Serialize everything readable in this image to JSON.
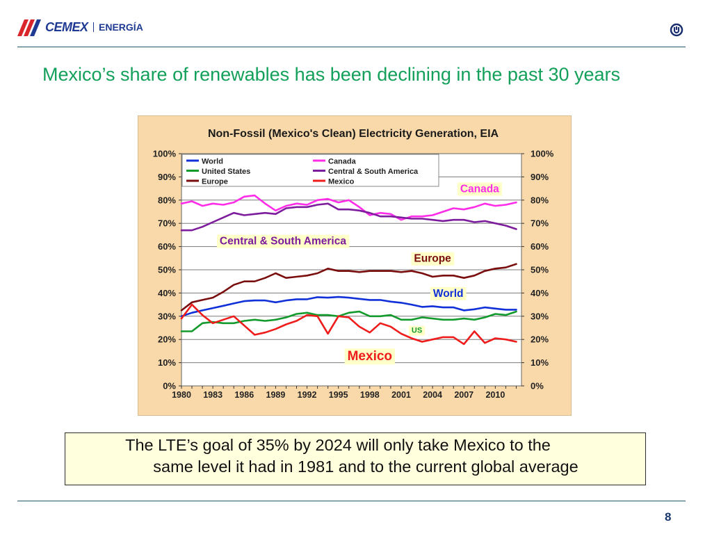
{
  "header": {
    "brand": "CEMEX",
    "division": "ENERGÍA"
  },
  "slide": {
    "title": "Mexico’s share of renewables has been declining in the past 30 years",
    "note_line1": "The LTE’s goal of 35% by 2024 will only take Mexico to the",
    "note_line2": "same level it had in 1981 and to the current global average",
    "page_number": "8"
  },
  "colors": {
    "brand_blue": "#1f3a93",
    "title_green": "#13a05a",
    "chart_bg": "#f9d9a9",
    "plot_bg": "#ffffff",
    "label_bg": "#ffffc8"
  },
  "chart_data": {
    "type": "line",
    "title": "Non-Fossil (Mexico's Clean) Electricity Generation, EIA",
    "x": [
      1980,
      1981,
      1982,
      1983,
      1984,
      1985,
      1986,
      1987,
      1988,
      1989,
      1990,
      1991,
      1992,
      1993,
      1994,
      1995,
      1996,
      1997,
      1998,
      1999,
      2000,
      2001,
      2002,
      2003,
      2004,
      2005,
      2006,
      2007,
      2008,
      2009,
      2010,
      2011,
      2012
    ],
    "xticks": [
      "1980",
      "1983",
      "1986",
      "1989",
      "1992",
      "1995",
      "1998",
      "2001",
      "2004",
      "2007",
      "2010"
    ],
    "yticks": [
      "0%",
      "10%",
      "20%",
      "30%",
      "40%",
      "50%",
      "60%",
      "70%",
      "80%",
      "90%",
      "100%"
    ],
    "ylim": [
      0,
      100
    ],
    "grid": true,
    "legend_position": "top-left",
    "series": [
      {
        "name": "World",
        "color": "#1030d8",
        "values": [
          30.0,
          31.5,
          32.5,
          33.5,
          34.5,
          35.5,
          36.5,
          36.8,
          36.8,
          36.0,
          36.8,
          37.3,
          37.3,
          38.2,
          38.0,
          38.3,
          38.0,
          37.5,
          37.0,
          37.0,
          36.3,
          35.8,
          35.0,
          34.0,
          34.3,
          33.8,
          33.8,
          32.5,
          33.0,
          33.8,
          33.3,
          32.8,
          32.8
        ]
      },
      {
        "name": "Canada",
        "color": "#ff2ce8",
        "values": [
          78.5,
          79.5,
          77.5,
          78.5,
          78.0,
          79.0,
          81.5,
          82.0,
          78.5,
          75.5,
          77.5,
          78.5,
          78.0,
          80.0,
          80.5,
          79.0,
          80.0,
          77.0,
          73.5,
          74.5,
          74.0,
          71.5,
          73.0,
          73.0,
          73.5,
          75.0,
          76.5,
          76.0,
          77.0,
          78.5,
          77.5,
          78.0,
          79.0
        ]
      },
      {
        "name": "United States",
        "color": "#139a2c",
        "values": [
          23.5,
          23.5,
          27.0,
          27.5,
          27.0,
          27.0,
          28.0,
          28.5,
          28.0,
          28.5,
          29.5,
          31.0,
          31.5,
          30.5,
          30.5,
          30.0,
          31.5,
          32.0,
          30.0,
          30.0,
          30.5,
          28.5,
          28.5,
          29.5,
          29.0,
          28.5,
          28.5,
          29.0,
          28.5,
          29.5,
          31.0,
          30.5,
          32.0
        ]
      },
      {
        "name": "Central & South America",
        "color": "#7d1c9c",
        "values": [
          67.0,
          67.0,
          68.5,
          70.5,
          72.5,
          74.5,
          73.5,
          74.0,
          74.5,
          74.0,
          76.5,
          77.0,
          77.0,
          78.0,
          78.5,
          76.0,
          76.0,
          75.5,
          74.5,
          73.0,
          73.0,
          72.5,
          72.0,
          72.0,
          71.5,
          71.0,
          71.5,
          71.5,
          70.5,
          71.0,
          70.0,
          69.0,
          67.5
        ]
      },
      {
        "name": "Europe",
        "color": "#7a0e0e",
        "values": [
          32.5,
          36.0,
          37.0,
          38.0,
          40.5,
          43.5,
          45.0,
          45.0,
          46.5,
          48.5,
          46.5,
          47.0,
          47.5,
          48.5,
          50.5,
          49.5,
          49.5,
          49.0,
          49.5,
          49.5,
          49.5,
          49.0,
          49.5,
          48.5,
          47.0,
          47.5,
          47.5,
          46.5,
          47.5,
          49.5,
          50.5,
          51.0,
          52.5
        ]
      },
      {
        "name": "Mexico",
        "color": "#ef1c1c",
        "values": [
          29.0,
          35.0,
          30.5,
          27.0,
          28.5,
          30.0,
          26.0,
          22.0,
          23.0,
          24.5,
          26.5,
          28.0,
          30.5,
          30.0,
          22.5,
          30.0,
          29.5,
          25.5,
          23.0,
          27.0,
          25.5,
          22.5,
          20.5,
          19.0,
          20.0,
          21.0,
          21.0,
          18.0,
          23.5,
          18.5,
          20.5,
          20.0,
          19.0
        ]
      }
    ],
    "annotations": [
      {
        "text": "Canada",
        "color": "#ff2ce8",
        "year": 2008.5,
        "value": 85
      },
      {
        "text": "Central & South America",
        "color": "#7d1c9c",
        "year": 1989.7,
        "value": 62.5
      },
      {
        "text": "Europe",
        "color": "#7a0e0e",
        "year": 2004,
        "value": 55
      },
      {
        "text": "World",
        "color": "#1030d8",
        "year": 2005.5,
        "value": 40
      },
      {
        "text": "US",
        "color": "#139a2c",
        "year": 2002.5,
        "value": 24,
        "small": true
      },
      {
        "text": "Mexico",
        "color": "#ef1c1c",
        "year": 1998,
        "value": 13,
        "big": true
      }
    ]
  }
}
